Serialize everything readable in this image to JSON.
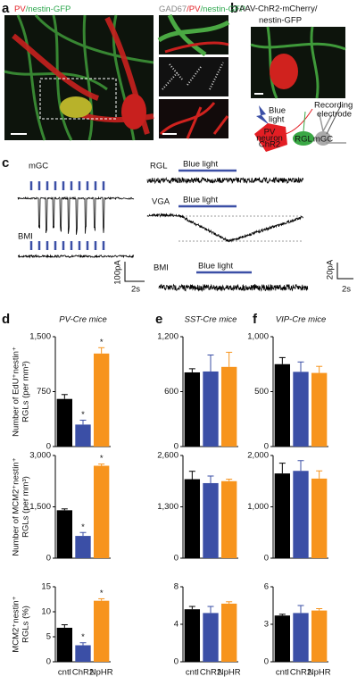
{
  "panel_labels": [
    "a",
    "b",
    "c",
    "d",
    "e",
    "f"
  ],
  "panel_a": {
    "left_label": [
      "PV",
      "/nestin-GFP"
    ],
    "right_label": [
      "GAD67",
      "/PV",
      "/nestin-GFP"
    ]
  },
  "panel_b": {
    "title_lines": [
      "AAV-ChR2-mCherry/",
      "nestin-GFP"
    ],
    "blue_light": [
      "Blue",
      "light"
    ],
    "neuron": [
      "PV",
      "neuron",
      "ChR2"
    ],
    "rgl": "RGL",
    "mgc": "mGC",
    "electrode": [
      "Recording",
      "electrode"
    ]
  },
  "panel_c": {
    "mgc": "mGC",
    "bmi_left": "BMI",
    "rgl": "RGL",
    "vga": "VGA",
    "bmi_right": "BMI",
    "blue_light": [
      "Blue light",
      "Blue light",
      "Blue light"
    ],
    "scale_left": [
      "100pA",
      "2s"
    ],
    "scale_right": [
      "20pA",
      "2s"
    ]
  },
  "chart_data": [
    {
      "type": "bar",
      "title": "PV-Cre mice",
      "ylabel": [
        "Number of EdU⁺nestin⁺",
        "RGLs (per mm³)"
      ],
      "values": [
        650,
        300,
        1270
      ],
      "errors": [
        60,
        60,
        80
      ],
      "significance": [
        null,
        "*",
        "*"
      ],
      "colors": [
        "#000000",
        "#3b4fa6",
        "#f7941d"
      ],
      "ylim": [
        0,
        1500
      ],
      "yticks": [
        0,
        750,
        {
          "value": 1500,
          "label": "1,500"
        }
      ]
    },
    {
      "type": "bar",
      "title": "SST-Cre mice",
      "values": [
        810,
        820,
        870
      ],
      "errors": [
        40,
        180,
        160
      ],
      "colors": [
        "#000000",
        "#3b4fa6",
        "#f7941d"
      ],
      "ylim": [
        0,
        1200
      ],
      "yticks": [
        0,
        600,
        {
          "value": 1200,
          "label": "1,200"
        }
      ]
    },
    {
      "type": "bar",
      "title": "VIP-Cre mice",
      "values": [
        750,
        680,
        670
      ],
      "errors": [
        60,
        90,
        60
      ],
      "colors": [
        "#000000",
        "#3b4fa6",
        "#f7941d"
      ],
      "ylim": [
        0,
        1000
      ],
      "yticks": [
        0,
        500,
        {
          "value": 1000,
          "label": "1,000"
        }
      ]
    },
    {
      "type": "bar",
      "ylabel": [
        "Number of MCM2⁺nestin⁺",
        "RGLs (per mm³)"
      ],
      "values": [
        1400,
        650,
        2700
      ],
      "errors": [
        40,
        100,
        50
      ],
      "significance": [
        null,
        "*",
        "*"
      ],
      "colors": [
        "#000000",
        "#3b4fa6",
        "#f7941d"
      ],
      "ylim": [
        0,
        3000
      ],
      "yticks": [
        0,
        {
          "value": 1500,
          "label": "1,500"
        },
        {
          "value": 3000,
          "label": "3,000"
        }
      ]
    },
    {
      "type": "bar",
      "values": [
        2000,
        1900,
        1950
      ],
      "errors": [
        200,
        180,
        50
      ],
      "colors": [
        "#000000",
        "#3b4fa6",
        "#f7941d"
      ],
      "ylim": [
        0,
        2600
      ],
      "yticks": [
        0,
        {
          "value": 1300,
          "label": "1,300"
        },
        {
          "value": 2600,
          "label": "2,600"
        }
      ]
    },
    {
      "type": "bar",
      "values": [
        1650,
        1700,
        1550
      ],
      "errors": [
        200,
        200,
        150
      ],
      "colors": [
        "#000000",
        "#3b4fa6",
        "#f7941d"
      ],
      "ylim": [
        0,
        2000
      ],
      "yticks": [
        0,
        {
          "value": 1000,
          "label": "1,000"
        },
        {
          "value": 2000,
          "label": "2,000"
        }
      ]
    },
    {
      "type": "bar",
      "ylabel": [
        "MCM2⁺nestin⁺",
        "RGLs (%)"
      ],
      "categories": [
        "cntl",
        "ChR2",
        "NpHR"
      ],
      "values": [
        6.8,
        3.3,
        12.2
      ],
      "errors": [
        0.6,
        0.5,
        0.4
      ],
      "significance": [
        null,
        "*",
        "*"
      ],
      "colors": [
        "#000000",
        "#3b4fa6",
        "#f7941d"
      ],
      "ylim": [
        0,
        15
      ],
      "yticks": [
        0,
        5,
        10,
        15
      ]
    },
    {
      "type": "bar",
      "categories": [
        "cntl",
        "ChR2",
        "NpHR"
      ],
      "values": [
        5.6,
        5.2,
        6.2
      ],
      "errors": [
        0.3,
        0.7,
        0.2
      ],
      "colors": [
        "#000000",
        "#3b4fa6",
        "#f7941d"
      ],
      "ylim": [
        0,
        8
      ],
      "yticks": [
        0,
        4,
        8
      ]
    },
    {
      "type": "bar",
      "categories": [
        "cntl",
        "ChR2",
        "NpHR"
      ],
      "values": [
        3.7,
        3.9,
        4.1
      ],
      "errors": [
        0.1,
        0.6,
        0.15
      ],
      "colors": [
        "#000000",
        "#3b4fa6",
        "#f7941d"
      ],
      "ylim": [
        0,
        6
      ],
      "yticks": [
        0,
        3,
        6
      ]
    }
  ]
}
